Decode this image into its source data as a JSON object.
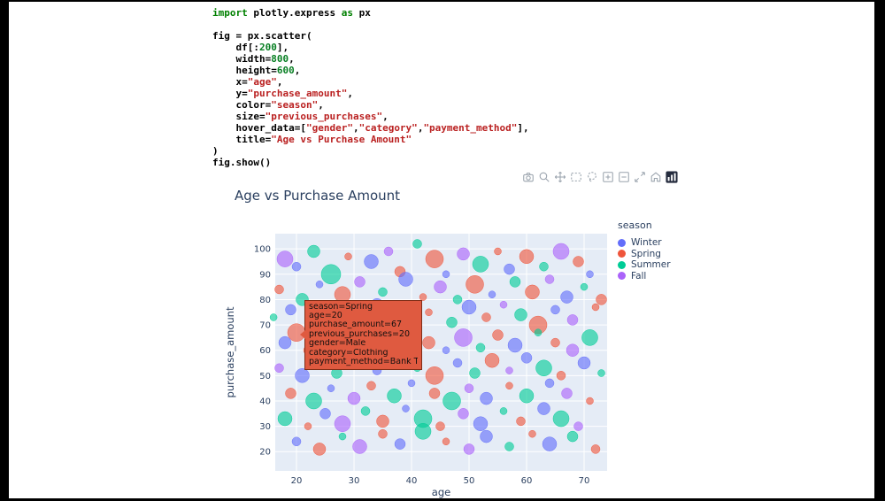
{
  "code_cell": {
    "lines": [
      [
        [
          "kw",
          "import"
        ],
        [
          "id",
          " plotly.express "
        ],
        [
          "kw",
          "as"
        ],
        [
          "id",
          " px"
        ]
      ],
      [],
      [
        [
          "id",
          "fig = px.scatter("
        ]
      ],
      [
        [
          "id",
          "    df[:"
        ],
        [
          "num",
          "200"
        ],
        [
          "id",
          "],"
        ]
      ],
      [
        [
          "id",
          "    width="
        ],
        [
          "num",
          "800"
        ],
        [
          "id",
          ","
        ]
      ],
      [
        [
          "id",
          "    height="
        ],
        [
          "num",
          "600"
        ],
        [
          "id",
          ","
        ]
      ],
      [
        [
          "id",
          "    x="
        ],
        [
          "str",
          "\"age\""
        ],
        [
          "id",
          ","
        ]
      ],
      [
        [
          "id",
          "    y="
        ],
        [
          "str",
          "\"purchase_amount\""
        ],
        [
          "id",
          ","
        ]
      ],
      [
        [
          "id",
          "    color="
        ],
        [
          "str",
          "\"season\""
        ],
        [
          "id",
          ","
        ]
      ],
      [
        [
          "id",
          "    size="
        ],
        [
          "str",
          "\"previous_purchases\""
        ],
        [
          "id",
          ","
        ]
      ],
      [
        [
          "id",
          "    hover_data=["
        ],
        [
          "str",
          "\"gender\""
        ],
        [
          "id",
          ","
        ],
        [
          "str",
          "\"category\""
        ],
        [
          "id",
          ","
        ],
        [
          "str",
          "\"payment_method\""
        ],
        [
          "id",
          "],"
        ]
      ],
      [
        [
          "id",
          "    title="
        ],
        [
          "str",
          "\"Age vs Purchase Amount\""
        ]
      ],
      [
        [
          "id",
          ")"
        ]
      ],
      [
        [
          "id",
          "fig.show()"
        ]
      ]
    ]
  },
  "modebar": {
    "buttons": [
      {
        "name": "download-plot",
        "title": "Download plot as a png"
      },
      {
        "name": "zoom",
        "title": "Zoom"
      },
      {
        "name": "pan",
        "title": "Pan"
      },
      {
        "name": "box-select",
        "title": "Box Select"
      },
      {
        "name": "lasso-select",
        "title": "Lasso Select"
      },
      {
        "name": "zoom-in",
        "title": "Zoom in"
      },
      {
        "name": "zoom-out",
        "title": "Zoom out"
      },
      {
        "name": "autoscale",
        "title": "Autoscale"
      },
      {
        "name": "reset-axes",
        "title": "Reset axes"
      },
      {
        "name": "plotly-logo",
        "title": "Produced with Plotly.js"
      }
    ]
  },
  "chart_data": {
    "type": "scatter",
    "title": "Age vs Purchase Amount",
    "xlabel": "age",
    "ylabel": "purchase_amount",
    "x_range": [
      16.3,
      74
    ],
    "y_range": [
      12.4,
      106
    ],
    "xticks": [
      20,
      30,
      40,
      50,
      60,
      70
    ],
    "yticks": [
      20,
      30,
      40,
      50,
      60,
      70,
      80,
      90,
      100
    ],
    "plot_bg": "#e5ecf6",
    "grid_color": "#ffffff",
    "legend": {
      "title": "season",
      "entries": [
        {
          "label": "Winter",
          "color": "#636EFA"
        },
        {
          "label": "Spring",
          "color": "#EF553B"
        },
        {
          "label": "Summer",
          "color": "#00CC96"
        },
        {
          "label": "Fall",
          "color": "#AB63FA"
        }
      ]
    },
    "seasons": [
      "Winter",
      "Spring",
      "Summer",
      "Fall"
    ],
    "colors": [
      "#636EFA",
      "#EF553B",
      "#00CC96",
      "#AB63FA"
    ],
    "points": [
      [
        18,
        96,
        9,
        3
      ],
      [
        20,
        93,
        5,
        0
      ],
      [
        23,
        99,
        7,
        2
      ],
      [
        26,
        90,
        11,
        2
      ],
      [
        29,
        97,
        4,
        1
      ],
      [
        33,
        95,
        8,
        0
      ],
      [
        36,
        99,
        5,
        3
      ],
      [
        38,
        91,
        6,
        1
      ],
      [
        41,
        102,
        5,
        2
      ],
      [
        44,
        96,
        10,
        1
      ],
      [
        46,
        90,
        4,
        0
      ],
      [
        49,
        98,
        7,
        3
      ],
      [
        52,
        94,
        9,
        2
      ],
      [
        55,
        99,
        4,
        1
      ],
      [
        57,
        92,
        6,
        0
      ],
      [
        60,
        97,
        8,
        1
      ],
      [
        63,
        93,
        5,
        2
      ],
      [
        66,
        99,
        9,
        3
      ],
      [
        69,
        95,
        6,
        1
      ],
      [
        71,
        90,
        4,
        0
      ],
      [
        17,
        84,
        5,
        1
      ],
      [
        21,
        80,
        7,
        2
      ],
      [
        24,
        86,
        4,
        0
      ],
      [
        28,
        82,
        9,
        1
      ],
      [
        31,
        87,
        6,
        3
      ],
      [
        35,
        83,
        5,
        2
      ],
      [
        39,
        88,
        8,
        0
      ],
      [
        42,
        81,
        4,
        1
      ],
      [
        45,
        85,
        7,
        3
      ],
      [
        48,
        80,
        5,
        2
      ],
      [
        51,
        86,
        10,
        1
      ],
      [
        54,
        82,
        4,
        0
      ],
      [
        58,
        87,
        6,
        2
      ],
      [
        61,
        83,
        8,
        1
      ],
      [
        64,
        88,
        5,
        3
      ],
      [
        67,
        81,
        7,
        0
      ],
      [
        70,
        85,
        4,
        2
      ],
      [
        73,
        80,
        6,
        1
      ],
      [
        16,
        73,
        4,
        2
      ],
      [
        19,
        76,
        6,
        0
      ],
      [
        20,
        67,
        10,
        1
      ],
      [
        25,
        71,
        5,
        3
      ],
      [
        27,
        77,
        8,
        2
      ],
      [
        30,
        72,
        4,
        1
      ],
      [
        34,
        78,
        7,
        0
      ],
      [
        37,
        74,
        5,
        2
      ],
      [
        40,
        70,
        9,
        3
      ],
      [
        43,
        75,
        4,
        1
      ],
      [
        47,
        71,
        6,
        2
      ],
      [
        50,
        77,
        8,
        0
      ],
      [
        53,
        73,
        5,
        1
      ],
      [
        56,
        78,
        4,
        3
      ],
      [
        59,
        74,
        7,
        2
      ],
      [
        62,
        70,
        10,
        1
      ],
      [
        65,
        76,
        5,
        0
      ],
      [
        68,
        72,
        6,
        3
      ],
      [
        72,
        77,
        4,
        1
      ],
      [
        18,
        63,
        7,
        0
      ],
      [
        22,
        60,
        5,
        1
      ],
      [
        26,
        65,
        9,
        2
      ],
      [
        29,
        61,
        4,
        3
      ],
      [
        32,
        66,
        6,
        1
      ],
      [
        36,
        62,
        8,
        0
      ],
      [
        39,
        67,
        5,
        2
      ],
      [
        43,
        63,
        7,
        1
      ],
      [
        46,
        60,
        4,
        0
      ],
      [
        49,
        65,
        10,
        3
      ],
      [
        52,
        61,
        5,
        2
      ],
      [
        55,
        66,
        6,
        1
      ],
      [
        58,
        62,
        8,
        0
      ],
      [
        62,
        67,
        4,
        2
      ],
      [
        65,
        63,
        5,
        1
      ],
      [
        68,
        60,
        7,
        3
      ],
      [
        71,
        65,
        9,
        2
      ],
      [
        17,
        53,
        5,
        3
      ],
      [
        21,
        50,
        8,
        0
      ],
      [
        24,
        55,
        4,
        1
      ],
      [
        27,
        51,
        6,
        2
      ],
      [
        31,
        56,
        9,
        1
      ],
      [
        34,
        52,
        5,
        0
      ],
      [
        38,
        57,
        7,
        3
      ],
      [
        41,
        53,
        4,
        2
      ],
      [
        44,
        50,
        10,
        1
      ],
      [
        48,
        55,
        5,
        0
      ],
      [
        51,
        51,
        6,
        2
      ],
      [
        54,
        56,
        8,
        1
      ],
      [
        57,
        52,
        4,
        3
      ],
      [
        60,
        57,
        6,
        0
      ],
      [
        63,
        53,
        9,
        2
      ],
      [
        66,
        50,
        5,
        1
      ],
      [
        70,
        55,
        7,
        0
      ],
      [
        73,
        51,
        4,
        2
      ],
      [
        19,
        43,
        6,
        1
      ],
      [
        23,
        40,
        9,
        2
      ],
      [
        26,
        45,
        4,
        0
      ],
      [
        30,
        41,
        7,
        3
      ],
      [
        33,
        46,
        5,
        1
      ],
      [
        37,
        42,
        8,
        2
      ],
      [
        40,
        47,
        4,
        0
      ],
      [
        44,
        43,
        6,
        1
      ],
      [
        47,
        40,
        10,
        2
      ],
      [
        50,
        45,
        5,
        3
      ],
      [
        53,
        41,
        7,
        0
      ],
      [
        57,
        46,
        4,
        1
      ],
      [
        60,
        42,
        8,
        2
      ],
      [
        64,
        47,
        5,
        0
      ],
      [
        67,
        43,
        6,
        3
      ],
      [
        71,
        40,
        4,
        1
      ],
      [
        18,
        33,
        8,
        2
      ],
      [
        22,
        30,
        4,
        1
      ],
      [
        25,
        35,
        6,
        0
      ],
      [
        28,
        31,
        9,
        3
      ],
      [
        32,
        36,
        5,
        2
      ],
      [
        35,
        32,
        7,
        1
      ],
      [
        39,
        37,
        4,
        0
      ],
      [
        42,
        33,
        10,
        2
      ],
      [
        45,
        30,
        5,
        1
      ],
      [
        49,
        35,
        6,
        3
      ],
      [
        52,
        31,
        8,
        0
      ],
      [
        56,
        36,
        4,
        2
      ],
      [
        59,
        32,
        5,
        1
      ],
      [
        63,
        37,
        7,
        0
      ],
      [
        66,
        33,
        9,
        2
      ],
      [
        69,
        30,
        5,
        3
      ],
      [
        20,
        24,
        5,
        0
      ],
      [
        24,
        21,
        7,
        1
      ],
      [
        28,
        26,
        4,
        2
      ],
      [
        31,
        22,
        8,
        3
      ],
      [
        35,
        27,
        5,
        1
      ],
      [
        38,
        23,
        6,
        0
      ],
      [
        42,
        28,
        9,
        2
      ],
      [
        46,
        24,
        4,
        1
      ],
      [
        50,
        21,
        6,
        3
      ],
      [
        53,
        26,
        7,
        0
      ],
      [
        57,
        22,
        5,
        2
      ],
      [
        61,
        27,
        4,
        1
      ],
      [
        64,
        23,
        8,
        0
      ],
      [
        68,
        26,
        6,
        2
      ],
      [
        72,
        21,
        5,
        1
      ]
    ],
    "hover": {
      "point": {
        "age": 20,
        "purchase_amount": 67
      },
      "bg": "#df5a40",
      "lines": [
        "season=Spring",
        "age=20",
        "purchase_amount=67",
        "previous_purchases=20",
        "gender=Male",
        "category=Clothing",
        "payment_method=Bank Transfer"
      ]
    }
  }
}
